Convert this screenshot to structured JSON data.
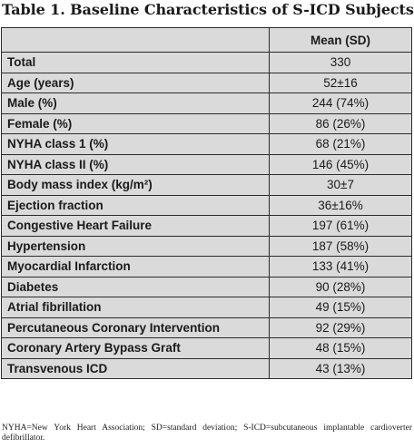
{
  "title": "Table 1. Baseline Characteristics of S-ICD Subjects.",
  "table": {
    "header": {
      "label": "",
      "value": "Mean (SD)"
    },
    "rows": [
      {
        "label": "Total",
        "value": "330"
      },
      {
        "label": "Age (years)",
        "value": "52±16"
      },
      {
        "label": "Male (%)",
        "value": "244 (74%)"
      },
      {
        "label": "Female (%)",
        "value": "86 (26%)"
      },
      {
        "label": "NYHA class 1 (%)",
        "value": "68 (21%)"
      },
      {
        "label": "NYHA class II (%)",
        "value": "146 (45%)"
      },
      {
        "label": "Body mass index (kg/m²)",
        "value": "30±7"
      },
      {
        "label": "Ejection fraction",
        "value": "36±16%"
      },
      {
        "label": "Congestive Heart Failure",
        "value": "197 (61%)"
      },
      {
        "label": "Hypertension",
        "value": "187 (58%)"
      },
      {
        "label": "Myocardial Infarction",
        "value": "133 (41%)"
      },
      {
        "label": "Diabetes",
        "value": "90 (28%)"
      },
      {
        "label": "Atrial fibrillation",
        "value": "49 (15%)"
      },
      {
        "label": "Percutaneous Coronary Intervention",
        "value": "92 (29%)"
      },
      {
        "label": "Coronary Artery Bypass Graft",
        "value": "48 (15%)"
      },
      {
        "label": "Transvenous ICD",
        "value": "43 (13%)"
      }
    ]
  },
  "footnote": "NYHA=New York Heart Association; SD=standard deviation; S-ICD=subcutaneous implantable cardioverter defibrillator."
}
